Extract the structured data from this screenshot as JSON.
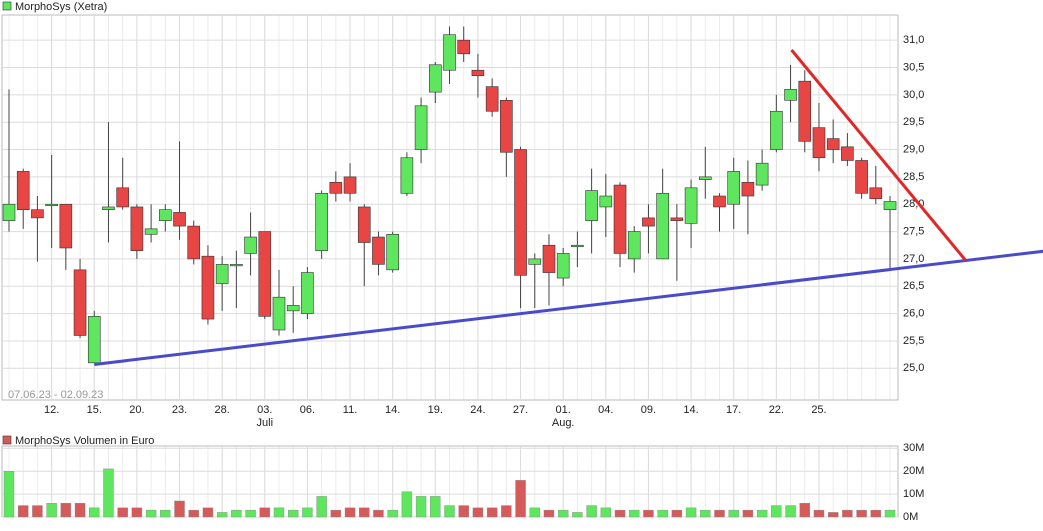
{
  "chart_data": [
    {
      "type": "candlestick",
      "name": "MorphoSys (Xetra)",
      "date_range": "07.06.23 - 02.09.23",
      "up_color": "#5ee65e",
      "down_color": "#e84545",
      "grid": true,
      "categories": [
        null,
        null,
        null,
        "12.",
        null,
        null,
        "15.",
        null,
        null,
        "20.",
        null,
        null,
        "23.",
        null,
        null,
        "28.",
        null,
        null,
        "03.",
        null,
        null,
        "06.",
        null,
        null,
        "11.",
        null,
        null,
        "14.",
        null,
        null,
        "19.",
        null,
        null,
        "24.",
        null,
        null,
        "27.",
        null,
        null,
        "01.",
        null,
        null,
        "04.",
        null,
        null,
        "09.",
        null,
        null,
        "14.",
        null,
        null,
        "17.",
        null,
        null,
        "22.",
        null,
        null,
        "25.",
        null,
        null,
        null,
        null,
        null,
        null
      ],
      "months": [
        null,
        null,
        null,
        null,
        null,
        null,
        null,
        null,
        null,
        null,
        null,
        null,
        null,
        null,
        null,
        null,
        null,
        null,
        "Juli",
        null,
        null,
        null,
        null,
        null,
        null,
        null,
        null,
        null,
        null,
        null,
        null,
        null,
        null,
        null,
        null,
        null,
        null,
        null,
        null,
        "Aug.",
        null,
        null,
        null,
        null,
        null,
        null,
        null,
        null,
        null,
        null,
        null,
        null,
        null,
        null,
        null,
        null,
        null,
        null,
        null,
        null,
        null,
        null,
        null
      ],
      "open": [
        27.7,
        28.6,
        27.9,
        28.0,
        28.0,
        26.8,
        25.1,
        27.9,
        28.3,
        27.95,
        27.45,
        27.7,
        27.85,
        27.6,
        27.05,
        26.55,
        26.9,
        27.1,
        27.5,
        25.7,
        26.05,
        26.0,
        27.15,
        28.4,
        28.5,
        27.95,
        27.4,
        26.8,
        28.2,
        29.0,
        30.05,
        30.45,
        31.0,
        30.45,
        30.15,
        29.9,
        29.0,
        26.9,
        27.25,
        26.65,
        27.25,
        27.7,
        27.95,
        28.35,
        27.0,
        27.75,
        27.0,
        27.75,
        27.65,
        28.45,
        28.15,
        28.0,
        28.4,
        28.35,
        29.0,
        29.9,
        30.25,
        29.4,
        29.2,
        29.05,
        28.8,
        28.3,
        27.9
      ],
      "high": [
        30.1,
        28.65,
        28.15,
        28.9,
        28.0,
        27.0,
        26.05,
        29.5,
        28.85,
        28.0,
        28.0,
        28.0,
        29.15,
        27.7,
        27.25,
        27.05,
        27.15,
        27.85,
        27.5,
        26.8,
        26.5,
        26.85,
        28.25,
        28.6,
        28.75,
        28.0,
        27.5,
        27.5,
        28.95,
        29.95,
        30.6,
        31.25,
        31.25,
        30.75,
        30.3,
        29.95,
        29.05,
        27.1,
        27.45,
        27.2,
        27.5,
        28.65,
        28.55,
        28.4,
        27.6,
        28.0,
        28.65,
        28.0,
        28.45,
        29.05,
        28.2,
        28.85,
        28.8,
        29.0,
        30.0,
        30.55,
        30.45,
        29.85,
        29.55,
        29.3,
        28.85,
        28.7,
        28.15
      ],
      "low": [
        27.5,
        27.55,
        26.95,
        27.2,
        26.8,
        25.55,
        25.1,
        27.3,
        27.9,
        27.0,
        27.3,
        27.5,
        27.35,
        26.9,
        25.8,
        26.05,
        26.1,
        26.7,
        25.9,
        25.6,
        25.65,
        25.9,
        27.0,
        28.05,
        28.05,
        26.5,
        26.7,
        26.75,
        28.15,
        28.75,
        29.85,
        30.2,
        30.6,
        29.95,
        29.6,
        28.5,
        26.1,
        26.1,
        26.15,
        26.5,
        26.85,
        27.1,
        27.4,
        26.85,
        26.75,
        27.1,
        27.0,
        26.6,
        27.2,
        28.1,
        27.5,
        27.55,
        27.45,
        28.25,
        28.95,
        29.5,
        28.95,
        28.6,
        28.75,
        28.7,
        28.1,
        28.0,
        26.8
      ],
      "close": [
        28.0,
        27.9,
        27.75,
        28.0,
        27.2,
        25.6,
        25.95,
        27.95,
        27.95,
        27.15,
        27.55,
        27.9,
        27.6,
        27.0,
        25.9,
        26.9,
        26.9,
        27.4,
        25.95,
        26.3,
        26.15,
        26.75,
        28.2,
        28.2,
        28.2,
        27.3,
        26.9,
        27.45,
        28.85,
        29.8,
        30.55,
        31.1,
        30.75,
        30.35,
        29.7,
        28.95,
        26.7,
        27.0,
        26.75,
        27.1,
        27.25,
        28.25,
        28.15,
        27.1,
        27.5,
        27.6,
        28.2,
        27.7,
        28.3,
        28.5,
        27.95,
        28.6,
        28.15,
        28.75,
        29.7,
        30.1,
        29.15,
        28.85,
        29.0,
        28.8,
        28.2,
        28.1,
        28.05
      ],
      "ylim": [
        24.42,
        31.46
      ],
      "yticks": [
        {
          "value": 25,
          "label": "25,0"
        },
        {
          "value": 25.5,
          "label": "25,5"
        },
        {
          "value": 26,
          "label": "26,0"
        },
        {
          "value": 26.5,
          "label": "26,5"
        },
        {
          "value": 27,
          "label": "27,0"
        },
        {
          "value": 27.5,
          "label": "27,5"
        },
        {
          "value": 28,
          "label": "28,0"
        },
        {
          "value": 28.5,
          "label": "28,5"
        },
        {
          "value": 29,
          "label": "29,0"
        },
        {
          "value": 29.5,
          "label": "29,5"
        },
        {
          "value": 30,
          "label": "30,0"
        },
        {
          "value": 30.5,
          "label": "30,5"
        },
        {
          "value": 31,
          "label": "31,0"
        }
      ],
      "trendlines": [
        {
          "color": "#4a4acb",
          "x": [
            6,
            72.8
          ],
          "values": [
            25.07,
            27.14
          ]
        },
        {
          "color": "#e02828",
          "x": [
            55.07,
            67.3
          ],
          "values": [
            30.82,
            26.98
          ]
        }
      ]
    },
    {
      "type": "bar",
      "name": "MorphoSys Volumen in Euro",
      "color": "#d55a5a",
      "values": [
        20,
        5,
        5,
        6,
        6,
        6,
        4,
        21,
        4,
        4,
        3,
        3,
        7,
        3,
        4,
        2,
        3,
        3,
        4,
        4,
        3,
        4,
        9,
        3,
        4,
        4,
        3,
        3,
        11,
        9,
        9,
        5,
        5,
        4,
        4,
        5,
        16,
        4,
        3,
        3,
        2,
        5,
        4,
        3,
        3,
        3,
        3,
        3,
        4,
        3,
        3,
        3,
        3,
        3,
        5,
        5,
        6,
        3,
        2,
        3,
        3,
        3,
        3
      ],
      "ylim": [
        0,
        31
      ],
      "yticks": [
        {
          "value": 0,
          "label": "0M"
        },
        {
          "value": 10,
          "label": "10M"
        },
        {
          "value": 20,
          "label": "20M"
        },
        {
          "value": 30,
          "label": "30M"
        }
      ]
    }
  ]
}
